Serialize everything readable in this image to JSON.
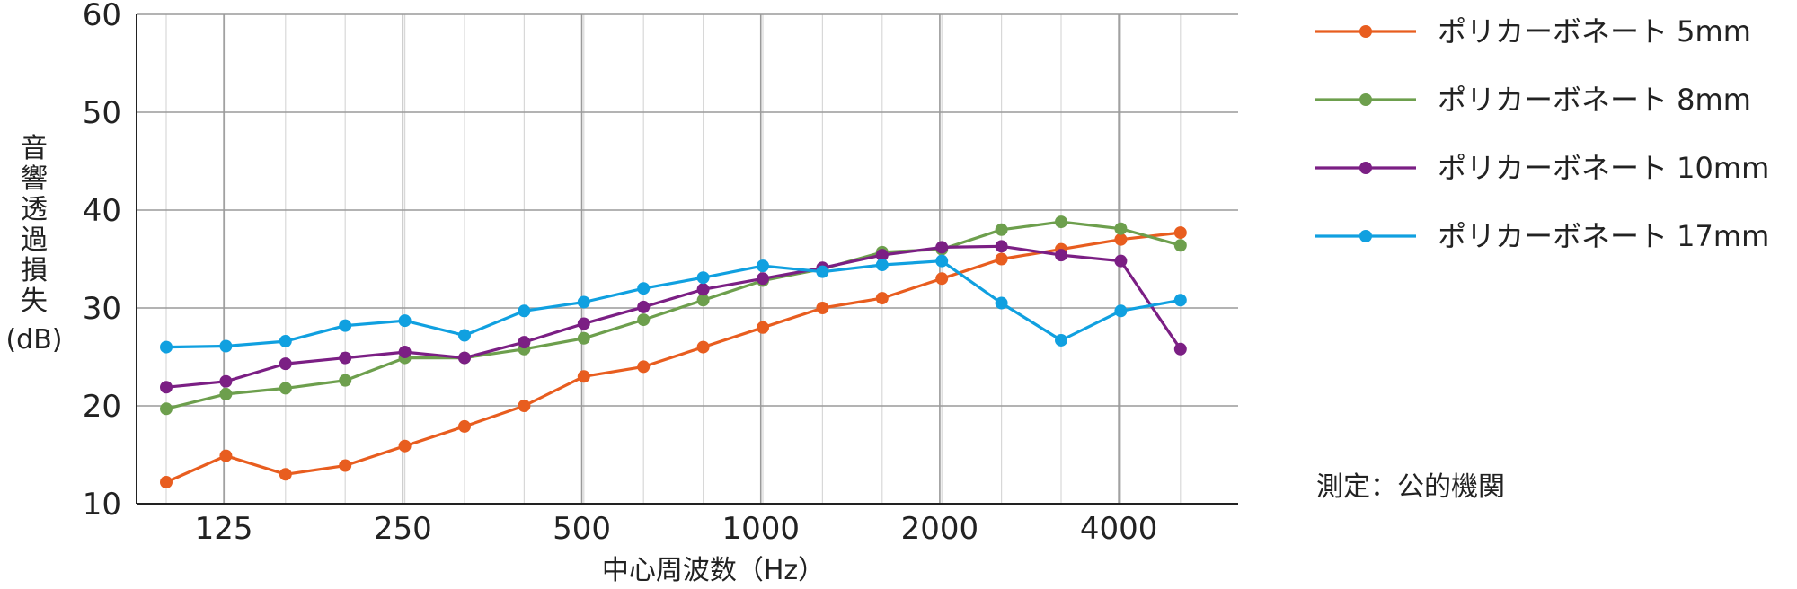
{
  "chart_data": {
    "type": "line",
    "title": "",
    "xlabel": "中心周波数（Hz）",
    "ylabel": "音響透過損失（dB）",
    "ylabel_chars": [
      "音",
      "響",
      "透",
      "過",
      "損",
      "失",
      "(dB)"
    ],
    "ylim": [
      10,
      60
    ],
    "yticks": [
      10,
      20,
      30,
      40,
      50,
      60
    ],
    "x_scale": "log",
    "x_hz": [
      100,
      125,
      160,
      200,
      250,
      315,
      400,
      500,
      630,
      800,
      1000,
      1250,
      1600,
      2000,
      2500,
      3150,
      4000,
      5000
    ],
    "x_tick_labels": [
      {
        "hz": 125,
        "label": "125"
      },
      {
        "hz": 250,
        "label": "250"
      },
      {
        "hz": 500,
        "label": "500"
      },
      {
        "hz": 1000,
        "label": "1000"
      },
      {
        "hz": 2000,
        "label": "2000"
      },
      {
        "hz": 4000,
        "label": "4000"
      }
    ],
    "grid": {
      "major_horizontal": true,
      "major_vertical_octave": true,
      "minor_vertical_third_octave": true
    },
    "legend_position": "right",
    "series": [
      {
        "name": "ポリカーボネート 5mm",
        "color": "#e85d1f",
        "values": [
          12.2,
          14.9,
          13.0,
          13.9,
          15.9,
          17.9,
          20.0,
          23.0,
          24.0,
          26.0,
          28.0,
          30.0,
          31.0,
          33.0,
          35.0,
          36.0,
          37.0,
          37.7
        ]
      },
      {
        "name": "ポリカーボネート 8mm",
        "color": "#6d9f4d",
        "values": [
          19.7,
          21.2,
          21.8,
          22.6,
          24.9,
          24.9,
          25.8,
          26.9,
          28.8,
          30.8,
          32.8,
          34.0,
          35.7,
          36.0,
          38.0,
          38.8,
          38.1,
          36.4
        ]
      },
      {
        "name": "ポリカーボネート 10mm",
        "color": "#7b1f84",
        "values": [
          21.9,
          22.5,
          24.3,
          24.9,
          25.5,
          24.9,
          26.5,
          28.4,
          30.1,
          31.9,
          33.0,
          34.1,
          35.4,
          36.2,
          36.3,
          35.4,
          34.8,
          25.8
        ]
      },
      {
        "name": "ポリカーボネート 17mm",
        "color": "#10a0e0",
        "values": [
          26.0,
          26.1,
          26.6,
          28.2,
          28.7,
          27.2,
          29.7,
          30.6,
          32.0,
          33.1,
          34.3,
          33.7,
          34.4,
          34.8,
          30.5,
          26.7,
          29.7,
          30.8
        ]
      }
    ],
    "annotations": [
      {
        "text": "測定：公的機関"
      }
    ]
  }
}
